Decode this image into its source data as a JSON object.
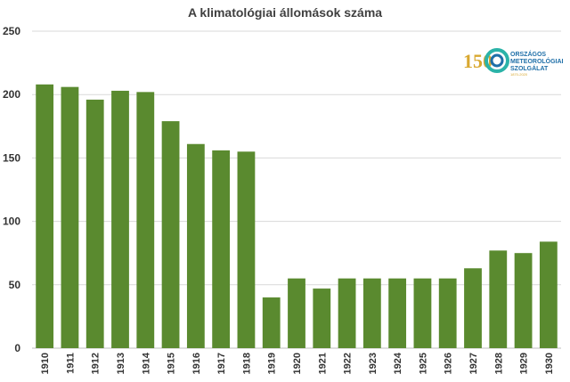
{
  "chart_data": {
    "type": "bar",
    "title": "A klimatológiai állomások száma",
    "xlabel": "",
    "ylabel": "",
    "categories": [
      "1910",
      "1911",
      "1912",
      "1913",
      "1914",
      "1915",
      "1916",
      "1917",
      "1918",
      "1919",
      "1920",
      "1921",
      "1922",
      "1923",
      "1924",
      "1925",
      "1926",
      "1927",
      "1928",
      "1929",
      "1930"
    ],
    "values": [
      208,
      206,
      196,
      203,
      202,
      179,
      161,
      156,
      155,
      40,
      55,
      47,
      55,
      55,
      55,
      55,
      55,
      63,
      77,
      75,
      84
    ],
    "ylim": [
      0,
      250
    ],
    "yticks": [
      0,
      50,
      100,
      150,
      200,
      250
    ],
    "ytick_labels": [
      "0",
      "50",
      "100",
      "150",
      "200",
      "250"
    ],
    "grid": true,
    "bar_color": "#5a8a2f"
  },
  "logo": {
    "number": "150",
    "lines": [
      "ORSZÁGOS",
      "METEOROLÓGIAI",
      "SZOLGÁLAT"
    ],
    "years": "1870-2020",
    "gold": "#d9a830",
    "blue": "#1f6fa8",
    "teal": "#2bb3a8"
  }
}
